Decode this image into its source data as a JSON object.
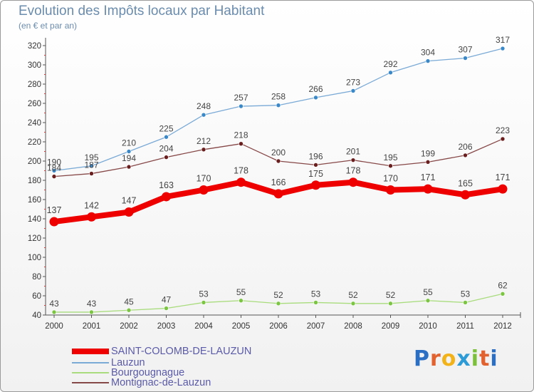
{
  "header": {
    "title": "Evolution des Impôts locaux par Habitant",
    "subtitle": "(en € et par an)"
  },
  "logo": {
    "text": "Proxiti"
  },
  "chart_data": {
    "type": "line",
    "title": "Evolution des Impôts locaux par Habitant",
    "subtitle": "(en € et par an)",
    "xlabel": "",
    "ylabel": "",
    "x": [
      "2000",
      "2001",
      "2002",
      "2003",
      "2004",
      "2005",
      "2006",
      "2007",
      "2008",
      "2009",
      "2010",
      "2011",
      "2012"
    ],
    "ylim": [
      40,
      320
    ],
    "yticks": [
      40,
      60,
      80,
      100,
      120,
      140,
      160,
      180,
      200,
      220,
      240,
      260,
      280,
      300,
      320
    ],
    "grid": false,
    "legend_position": "bottom-left",
    "series": [
      {
        "name": "SAINT-COLOMB-DE-LAUZUN",
        "values": [
          137,
          142,
          147,
          163,
          170,
          178,
          166,
          175,
          178,
          170,
          171,
          165,
          171
        ],
        "color": "#ee0000",
        "style": "thick"
      },
      {
        "name": "Lauzun",
        "values": [
          190,
          195,
          210,
          225,
          248,
          257,
          258,
          266,
          273,
          292,
          304,
          307,
          317
        ],
        "color": "#7aaad6",
        "marker": "#3a88c8",
        "style": "thin"
      },
      {
        "name": "Bourgougnague",
        "values": [
          43,
          43,
          45,
          47,
          53,
          55,
          52,
          53,
          52,
          52,
          55,
          53,
          62
        ],
        "color": "#a8dc7c",
        "marker": "#7bc542",
        "style": "thin"
      },
      {
        "name": "Montignac-de-Lauzun",
        "values": [
          184,
          187,
          194,
          204,
          212,
          218,
          200,
          196,
          201,
          195,
          199,
          206,
          223
        ],
        "color": "#874848",
        "marker": "#6a1e1e",
        "style": "thin"
      }
    ],
    "data_labels": [
      [
        "137",
        "142",
        "147",
        "163",
        "170",
        "178",
        "166",
        "175",
        "178",
        "170",
        "171",
        "165",
        "171"
      ],
      [
        "190",
        "195",
        "210",
        "225",
        "248",
        "257",
        "258",
        "266",
        "273",
        "292",
        "304",
        "307",
        "317"
      ],
      [
        "43",
        "43",
        "45",
        "47",
        "53",
        "55",
        "52",
        "53",
        "52",
        "52",
        "55",
        "53",
        "62"
      ],
      [
        "184",
        "187",
        "194",
        "204",
        "212",
        "218",
        "200",
        "196",
        "201",
        "195",
        "199",
        "206",
        "223"
      ]
    ]
  }
}
